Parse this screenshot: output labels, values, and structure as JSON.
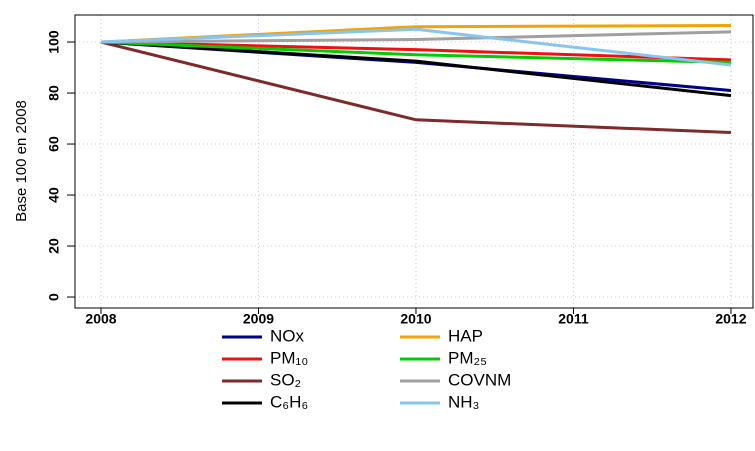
{
  "chart_data": {
    "type": "line",
    "y_label": "Base 100 en 2008",
    "x": [
      2008,
      2010,
      2012
    ],
    "xlim": [
      2007.835,
      2012.14
    ],
    "xticks": [
      2008,
      2009,
      2010,
      2011,
      2012
    ],
    "ylim": [
      -4.3,
      110.6
    ],
    "yticks": [
      0,
      20,
      40,
      60,
      80,
      100
    ],
    "grid": true,
    "legend": "bottom",
    "series": [
      {
        "name": "NOx",
        "color": "#00008b",
        "values": [
          100,
          92,
          81
        ]
      },
      {
        "name": "PM₁₀",
        "color": "#ee1111",
        "values": [
          100,
          97,
          93
        ]
      },
      {
        "name": "SO₂",
        "color": "#7f2a2a",
        "values": [
          100,
          69.5,
          64.5
        ]
      },
      {
        "name": "C₆H₆",
        "color": "#000000",
        "values": [
          100,
          92.5,
          79
        ]
      },
      {
        "name": "HAP",
        "color": "#f0a30a",
        "values": [
          100,
          106,
          106.5
        ]
      },
      {
        "name": "PM₂₅",
        "color": "#00cc00",
        "values": [
          100,
          95,
          92
        ]
      },
      {
        "name": "COVNM",
        "color": "#a0a0a0",
        "values": [
          100,
          101,
          104
        ]
      },
      {
        "name": "NH₃",
        "color": "#87c4ee",
        "values": [
          100,
          105,
          91
        ]
      }
    ]
  }
}
